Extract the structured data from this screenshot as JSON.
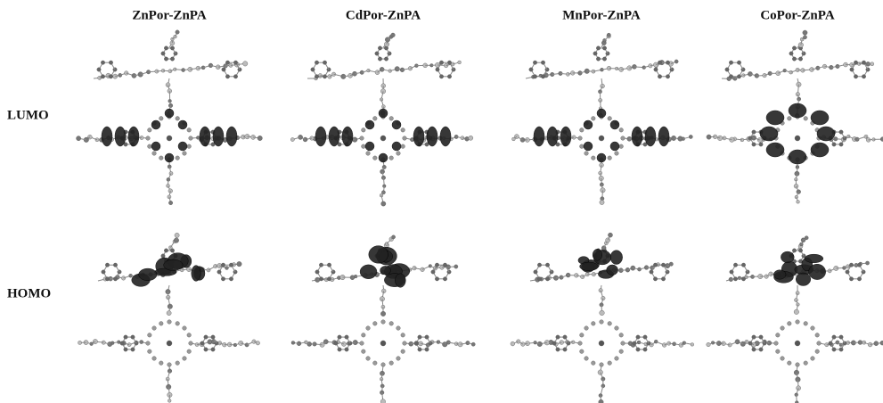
{
  "columns": [
    "ZnPor-ZnPA",
    "CdPor-ZnPA",
    "MnPor-ZnPA",
    "CoPor-ZnPA"
  ],
  "rows": [
    "LUMO",
    "HOMO"
  ]
}
